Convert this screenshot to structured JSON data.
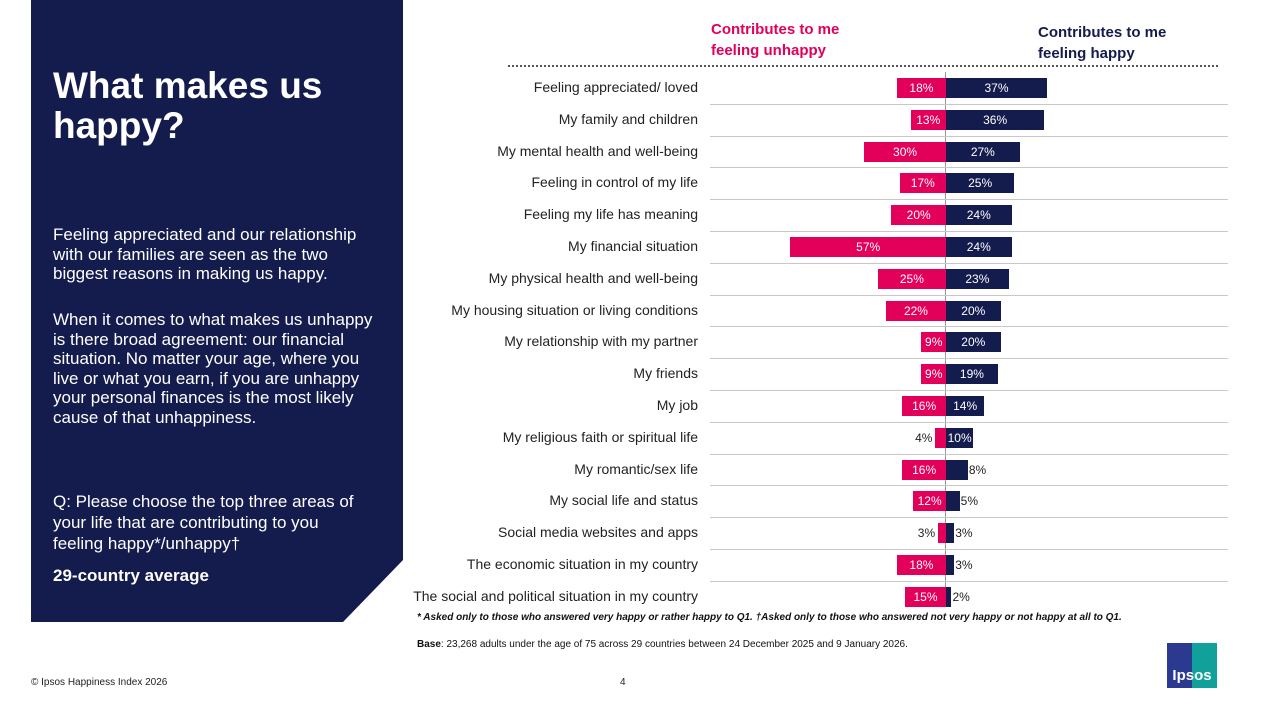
{
  "panel": {
    "title": "What makes us happy?",
    "p1": "Feeling appreciated and our relationship with our families are seen as the two biggest reasons in making us happy.",
    "p2": "When it comes to what makes us unhappy is there broad agreement: our financial situation. No matter your age, where you live or what you earn, if you are unhappy your personal finances is the most likely cause of that unhappiness.",
    "question": "Q: Please choose the top three areas of your life that are contributing to you feeling happy*/unhappy†",
    "average": "29-country average"
  },
  "chart_data": {
    "type": "bar",
    "orientation": "horizontal-diverging",
    "categories": [
      "Feeling appreciated/ loved",
      "My family and children",
      "My mental health and well-being",
      "Feeling in control of my life",
      "Feeling my life has meaning",
      "My financial situation",
      "My physical health and well-being",
      "My housing situation or living conditions",
      "My relationship with my partner",
      "My friends",
      "My job",
      "My religious faith or spiritual life",
      "My romantic/sex life",
      "My social life and status",
      "Social media websites and apps",
      "The economic situation in my country",
      "The social and political situation in my country"
    ],
    "series": [
      {
        "name": "Contributes to me feeling unhappy",
        "color": "#e2005a",
        "values": [
          18,
          13,
          30,
          17,
          20,
          57,
          25,
          22,
          9,
          9,
          16,
          4,
          16,
          12,
          3,
          18,
          15
        ]
      },
      {
        "name": "Contributes to me feeling happy",
        "color": "#141b4d",
        "values": [
          37,
          36,
          27,
          25,
          24,
          24,
          23,
          20,
          20,
          19,
          14,
          10,
          8,
          5,
          3,
          3,
          2
        ]
      }
    ],
    "unit": "%"
  },
  "notes": {
    "asterisk": "* Asked only to those who answered very happy or rather happy to Q1. †Asked only to those who answered not very happy or not happy at all to Q1.",
    "base_label": "Base",
    "base": ": 23,268 adults under the age of 75 across 29 countries between  24 December 2025 and 9 January 2026."
  },
  "footer": {
    "copyright": "© Ipsos Happiness Index 2026",
    "page": "4",
    "logo": "Ipsos"
  }
}
